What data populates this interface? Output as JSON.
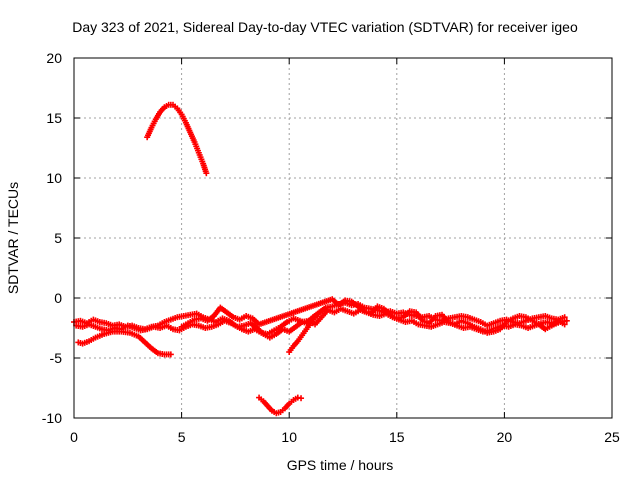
{
  "chart_data": {
    "type": "scatter",
    "title": "Day 323 of 2021, Sidereal Day-to-day VTEC variation (SDTVAR) for receiver igeo",
    "xlabel": "GPS time / hours",
    "ylabel": "SDTVAR / TECUs",
    "xlim": [
      0,
      25
    ],
    "ylim": [
      -10,
      20
    ],
    "xticks": [
      0,
      5,
      10,
      15,
      20,
      25
    ],
    "yticks": [
      -10,
      -5,
      0,
      5,
      10,
      15,
      20
    ],
    "xtick_labels": [
      "0",
      "5",
      "10",
      "15",
      "20",
      "25"
    ],
    "ytick_labels": [
      "-10",
      "-5",
      "0",
      "5",
      "10",
      "15",
      "20"
    ],
    "grid": true,
    "marker_color": "#ff0000",
    "grid_color": "#a0a0a0",
    "series": [
      {
        "name": "arc-high",
        "points": [
          [
            3.4,
            13.4
          ],
          [
            3.6,
            14.2
          ],
          [
            3.8,
            14.9
          ],
          [
            4.0,
            15.5
          ],
          [
            4.2,
            15.9
          ],
          [
            4.4,
            16.1
          ],
          [
            4.6,
            16.1
          ],
          [
            4.8,
            15.8
          ],
          [
            5.0,
            15.3
          ],
          [
            5.2,
            14.6
          ],
          [
            5.4,
            13.8
          ],
          [
            5.6,
            13.0
          ],
          [
            5.8,
            12.1
          ],
          [
            6.0,
            11.2
          ],
          [
            6.15,
            10.4
          ]
        ]
      },
      {
        "name": "arc-low",
        "points": [
          [
            8.6,
            -8.3
          ],
          [
            8.8,
            -8.6
          ],
          [
            9.0,
            -9.0
          ],
          [
            9.2,
            -9.4
          ],
          [
            9.4,
            -9.6
          ],
          [
            9.6,
            -9.5
          ],
          [
            9.8,
            -9.2
          ],
          [
            10.0,
            -8.8
          ],
          [
            10.2,
            -8.5
          ],
          [
            10.4,
            -8.3
          ],
          [
            10.55,
            -8.35
          ]
        ]
      },
      {
        "name": "left-dip",
        "points": [
          [
            0.2,
            -3.7
          ],
          [
            0.4,
            -3.8
          ],
          [
            0.7,
            -3.6
          ],
          [
            1.0,
            -3.3
          ],
          [
            1.4,
            -3.0
          ],
          [
            1.8,
            -2.8
          ],
          [
            2.2,
            -2.8
          ],
          [
            2.6,
            -2.9
          ],
          [
            3.0,
            -3.2
          ],
          [
            3.3,
            -3.7
          ],
          [
            3.6,
            -4.2
          ],
          [
            3.9,
            -4.6
          ],
          [
            4.2,
            -4.7
          ],
          [
            4.5,
            -4.7
          ]
        ]
      },
      {
        "name": "rise-after-low",
        "points": [
          [
            10.0,
            -4.5
          ],
          [
            10.2,
            -4.0
          ],
          [
            10.4,
            -3.6
          ],
          [
            10.6,
            -3.1
          ],
          [
            10.8,
            -2.6
          ],
          [
            11.0,
            -2.1
          ],
          [
            11.2,
            -1.6
          ],
          [
            11.4,
            -1.2
          ]
        ]
      },
      {
        "name": "band-a",
        "points": [
          [
            0.0,
            -2.0
          ],
          [
            0.3,
            -1.9
          ],
          [
            0.6,
            -2.1
          ],
          [
            0.9,
            -1.8
          ],
          [
            1.2,
            -2.0
          ],
          [
            1.5,
            -2.1
          ],
          [
            1.8,
            -2.3
          ],
          [
            2.1,
            -2.2
          ],
          [
            2.4,
            -2.4
          ],
          [
            2.7,
            -2.3
          ],
          [
            3.0,
            -2.5
          ],
          [
            3.3,
            -2.6
          ],
          [
            3.6,
            -2.4
          ],
          [
            3.9,
            -2.3
          ],
          [
            4.2,
            -2.0
          ],
          [
            4.5,
            -1.8
          ],
          [
            4.8,
            -1.6
          ],
          [
            5.1,
            -1.5
          ],
          [
            5.4,
            -1.4
          ],
          [
            5.7,
            -1.3
          ],
          [
            6.0,
            -1.6
          ],
          [
            6.3,
            -1.8
          ],
          [
            6.6,
            -2.0
          ],
          [
            6.9,
            -1.7
          ],
          [
            7.2,
            -1.9
          ],
          [
            7.5,
            -2.3
          ],
          [
            7.8,
            -2.6
          ],
          [
            8.1,
            -2.8
          ],
          [
            8.4,
            -2.6
          ],
          [
            8.7,
            -2.9
          ],
          [
            9.0,
            -3.0
          ],
          [
            9.3,
            -2.7
          ],
          [
            9.6,
            -2.4
          ],
          [
            9.9,
            -2.0
          ],
          [
            10.2,
            -1.7
          ],
          [
            10.5,
            -1.9
          ],
          [
            10.8,
            -2.1
          ],
          [
            11.1,
            -1.6
          ],
          [
            11.4,
            -1.2
          ],
          [
            11.7,
            -0.8
          ],
          [
            12.0,
            -0.7
          ],
          [
            12.3,
            -0.5
          ],
          [
            12.6,
            -0.4
          ],
          [
            12.9,
            -0.6
          ],
          [
            13.2,
            -0.5
          ],
          [
            13.5,
            -0.8
          ],
          [
            13.8,
            -0.9
          ],
          [
            14.1,
            -1.0
          ],
          [
            14.4,
            -1.2
          ],
          [
            14.7,
            -1.1
          ],
          [
            15.0,
            -1.3
          ],
          [
            15.3,
            -1.2
          ],
          [
            15.6,
            -1.4
          ],
          [
            15.9,
            -1.5
          ],
          [
            16.2,
            -1.6
          ],
          [
            16.5,
            -1.5
          ],
          [
            16.8,
            -1.8
          ],
          [
            17.1,
            -1.9
          ],
          [
            17.4,
            -1.7
          ],
          [
            17.7,
            -1.6
          ],
          [
            18.0,
            -1.5
          ],
          [
            18.3,
            -1.6
          ],
          [
            18.6,
            -1.8
          ],
          [
            18.9,
            -2.0
          ],
          [
            19.2,
            -2.3
          ],
          [
            19.5,
            -2.1
          ],
          [
            19.8,
            -1.9
          ],
          [
            20.1,
            -1.8
          ],
          [
            20.4,
            -2.0
          ],
          [
            20.7,
            -2.1
          ],
          [
            21.0,
            -1.9
          ],
          [
            21.3,
            -1.7
          ],
          [
            21.6,
            -1.6
          ],
          [
            21.9,
            -1.5
          ],
          [
            22.2,
            -1.7
          ],
          [
            22.5,
            -1.8
          ],
          [
            22.8,
            -1.6
          ]
        ]
      },
      {
        "name": "band-b",
        "points": [
          [
            0.1,
            -2.3
          ],
          [
            0.4,
            -2.4
          ],
          [
            0.7,
            -2.2
          ],
          [
            1.0,
            -2.4
          ],
          [
            1.3,
            -2.6
          ],
          [
            1.6,
            -2.7
          ],
          [
            1.9,
            -2.5
          ],
          [
            2.2,
            -2.6
          ],
          [
            2.5,
            -2.3
          ],
          [
            2.8,
            -2.5
          ],
          [
            3.1,
            -2.7
          ],
          [
            3.4,
            -2.6
          ],
          [
            3.7,
            -2.4
          ],
          [
            4.0,
            -2.5
          ],
          [
            4.3,
            -2.3
          ],
          [
            4.6,
            -2.6
          ],
          [
            4.9,
            -2.7
          ],
          [
            5.2,
            -2.4
          ],
          [
            5.5,
            -2.2
          ],
          [
            5.8,
            -2.3
          ],
          [
            6.1,
            -2.5
          ],
          [
            6.4,
            -2.4
          ],
          [
            6.7,
            -2.2
          ],
          [
            7.0,
            -1.9
          ],
          [
            7.3,
            -2.1
          ],
          [
            7.6,
            -2.4
          ],
          [
            7.9,
            -2.3
          ],
          [
            8.2,
            -2.1
          ],
          [
            8.5,
            -2.5
          ],
          [
            8.8,
            -3.0
          ],
          [
            9.1,
            -3.3
          ],
          [
            9.4,
            -3.0
          ],
          [
            9.7,
            -2.6
          ],
          [
            10.0,
            -2.8
          ],
          [
            10.3,
            -2.4
          ],
          [
            10.6,
            -2.0
          ],
          [
            10.9,
            -1.9
          ],
          [
            11.2,
            -2.2
          ],
          [
            11.5,
            -1.6
          ],
          [
            11.8,
            -1.0
          ],
          [
            12.1,
            -1.2
          ],
          [
            12.4,
            -0.9
          ],
          [
            12.7,
            -1.1
          ],
          [
            13.0,
            -1.3
          ],
          [
            13.3,
            -1.0
          ],
          [
            13.6,
            -1.2
          ],
          [
            13.9,
            -1.4
          ],
          [
            14.2,
            -1.5
          ],
          [
            14.5,
            -1.3
          ],
          [
            14.8,
            -1.6
          ],
          [
            15.1,
            -1.8
          ],
          [
            15.4,
            -2.0
          ],
          [
            15.7,
            -1.9
          ],
          [
            16.0,
            -2.2
          ],
          [
            16.3,
            -2.3
          ],
          [
            16.6,
            -2.4
          ],
          [
            16.9,
            -2.2
          ],
          [
            17.2,
            -2.0
          ],
          [
            17.5,
            -2.1
          ],
          [
            17.8,
            -2.3
          ],
          [
            18.1,
            -2.5
          ],
          [
            18.4,
            -2.4
          ],
          [
            18.7,
            -2.6
          ],
          [
            19.0,
            -2.8
          ],
          [
            19.3,
            -2.7
          ],
          [
            19.6,
            -2.5
          ],
          [
            19.9,
            -2.3
          ],
          [
            20.2,
            -2.4
          ],
          [
            20.5,
            -2.2
          ],
          [
            20.8,
            -2.3
          ],
          [
            21.1,
            -2.5
          ],
          [
            21.4,
            -2.3
          ],
          [
            21.7,
            -2.1
          ],
          [
            22.0,
            -2.0
          ],
          [
            22.3,
            -2.2
          ],
          [
            22.6,
            -2.0
          ],
          [
            22.9,
            -1.9
          ]
        ]
      },
      {
        "name": "band-c",
        "points": [
          [
            5.0,
            -2.4
          ],
          [
            5.3,
            -2.1
          ],
          [
            5.6,
            -1.8
          ],
          [
            5.9,
            -1.7
          ],
          [
            6.2,
            -1.9
          ],
          [
            6.5,
            -1.5
          ],
          [
            6.8,
            -0.8
          ],
          [
            7.1,
            -1.2
          ],
          [
            7.4,
            -1.6
          ],
          [
            7.7,
            -1.8
          ],
          [
            8.0,
            -1.5
          ],
          [
            8.3,
            -1.7
          ],
          [
            8.6,
            -2.2
          ],
          [
            12.0,
            -0.1
          ],
          [
            12.3,
            -0.6
          ],
          [
            12.6,
            -0.2
          ],
          [
            12.9,
            -0.3
          ],
          [
            13.2,
            -0.7
          ],
          [
            13.5,
            -1.1
          ],
          [
            13.8,
            -1.3
          ],
          [
            14.1,
            -0.7
          ],
          [
            14.4,
            -0.9
          ],
          [
            14.7,
            -1.4
          ],
          [
            15.0,
            -1.7
          ],
          [
            15.3,
            -1.6
          ],
          [
            15.6,
            -1.1
          ],
          [
            15.9,
            -1.2
          ],
          [
            16.2,
            -1.9
          ],
          [
            16.5,
            -2.1
          ],
          [
            16.8,
            -1.5
          ],
          [
            17.1,
            -1.4
          ],
          [
            17.4,
            -2.0
          ],
          [
            17.7,
            -2.2
          ],
          [
            18.0,
            -1.9
          ],
          [
            18.3,
            -2.1
          ],
          [
            18.6,
            -2.4
          ],
          [
            18.9,
            -2.6
          ],
          [
            19.2,
            -2.9
          ],
          [
            19.5,
            -2.8
          ],
          [
            19.8,
            -2.6
          ],
          [
            20.1,
            -2.0
          ],
          [
            20.4,
            -1.7
          ],
          [
            20.7,
            -1.5
          ],
          [
            21.0,
            -1.6
          ],
          [
            21.3,
            -1.9
          ],
          [
            21.6,
            -2.2
          ],
          [
            21.9,
            -2.6
          ],
          [
            22.2,
            -2.3
          ],
          [
            22.5,
            -1.9
          ],
          [
            22.8,
            -2.2
          ]
        ]
      }
    ]
  }
}
